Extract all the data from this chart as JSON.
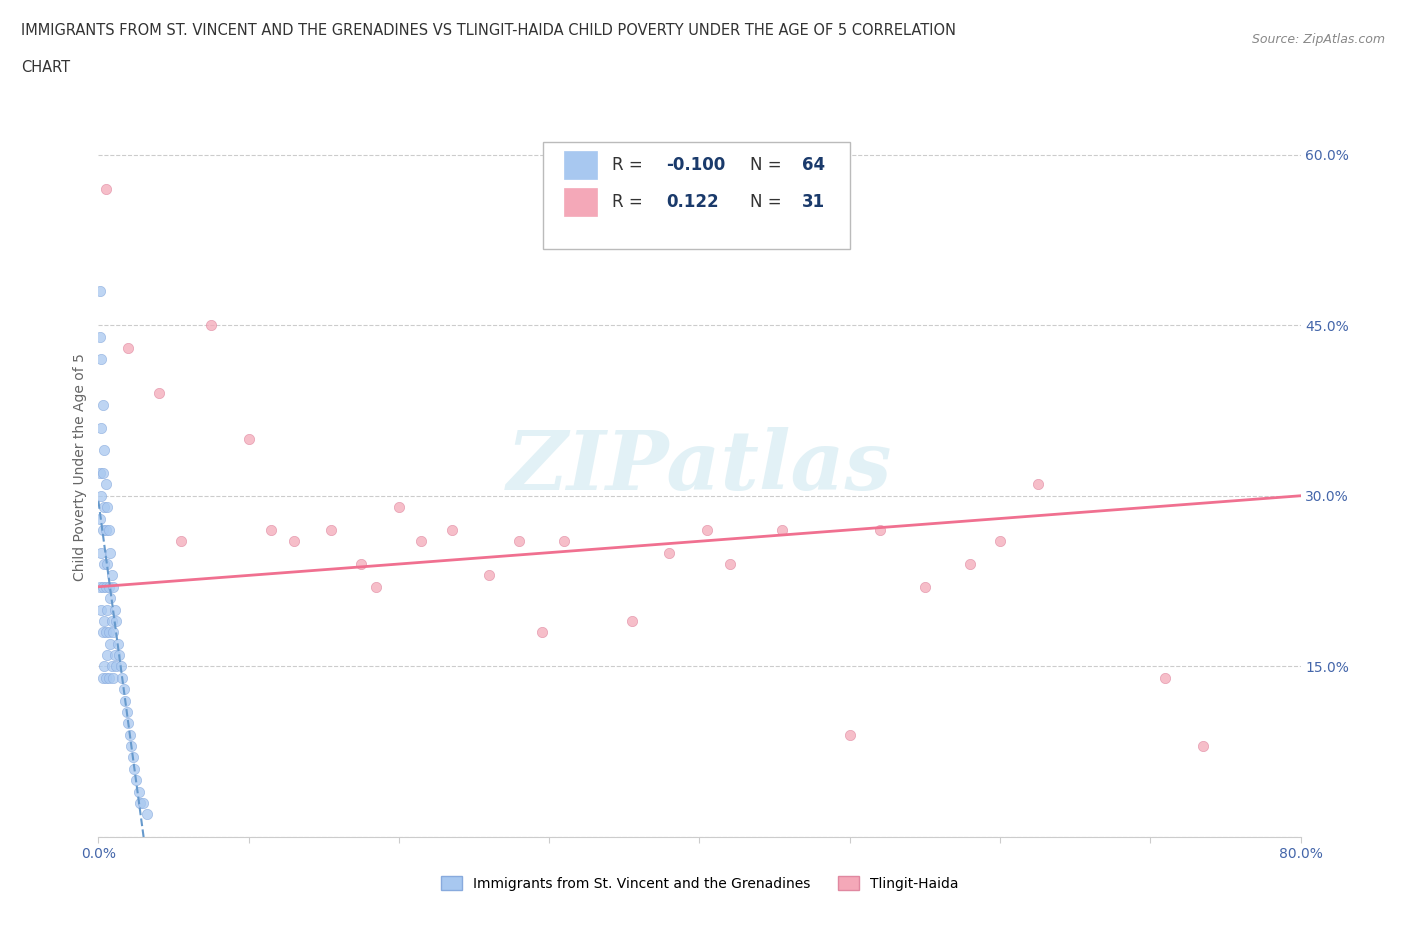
{
  "title_line1": "IMMIGRANTS FROM ST. VINCENT AND THE GRENADINES VS TLINGIT-HAIDA CHILD POVERTY UNDER THE AGE OF 5 CORRELATION",
  "title_line2": "CHART",
  "source_text": "Source: ZipAtlas.com",
  "ylabel": "Child Poverty Under the Age of 5",
  "xmin": 0.0,
  "xmax": 0.8,
  "ymin": 0.0,
  "ymax": 0.65,
  "xticks": [
    0.0,
    0.1,
    0.2,
    0.3,
    0.4,
    0.5,
    0.6,
    0.7,
    0.8
  ],
  "xticklabels": [
    "0.0%",
    "",
    "",
    "",
    "",
    "",
    "",
    "",
    "80.0%"
  ],
  "yticks": [
    0.0,
    0.15,
    0.3,
    0.45,
    0.6
  ],
  "yticklabels": [
    "",
    "15.0%",
    "30.0%",
    "45.0%",
    "60.0%"
  ],
  "grid_color": "#cccccc",
  "watermark_text": "ZIPatlas",
  "blue_scatter_x": [
    0.001,
    0.001,
    0.001,
    0.001,
    0.001,
    0.002,
    0.002,
    0.002,
    0.002,
    0.002,
    0.003,
    0.003,
    0.003,
    0.003,
    0.003,
    0.003,
    0.004,
    0.004,
    0.004,
    0.004,
    0.004,
    0.005,
    0.005,
    0.005,
    0.005,
    0.005,
    0.006,
    0.006,
    0.006,
    0.006,
    0.007,
    0.007,
    0.007,
    0.007,
    0.008,
    0.008,
    0.008,
    0.009,
    0.009,
    0.009,
    0.01,
    0.01,
    0.01,
    0.011,
    0.011,
    0.012,
    0.012,
    0.013,
    0.014,
    0.015,
    0.016,
    0.017,
    0.018,
    0.019,
    0.02,
    0.021,
    0.022,
    0.023,
    0.024,
    0.025,
    0.027,
    0.028,
    0.03,
    0.032
  ],
  "blue_scatter_y": [
    0.48,
    0.44,
    0.32,
    0.28,
    0.22,
    0.42,
    0.36,
    0.3,
    0.25,
    0.2,
    0.38,
    0.32,
    0.27,
    0.22,
    0.18,
    0.14,
    0.34,
    0.29,
    0.24,
    0.19,
    0.15,
    0.31,
    0.27,
    0.22,
    0.18,
    0.14,
    0.29,
    0.24,
    0.2,
    0.16,
    0.27,
    0.22,
    0.18,
    0.14,
    0.25,
    0.21,
    0.17,
    0.23,
    0.19,
    0.15,
    0.22,
    0.18,
    0.14,
    0.2,
    0.16,
    0.19,
    0.15,
    0.17,
    0.16,
    0.15,
    0.14,
    0.13,
    0.12,
    0.11,
    0.1,
    0.09,
    0.08,
    0.07,
    0.06,
    0.05,
    0.04,
    0.03,
    0.03,
    0.02
  ],
  "pink_scatter_x": [
    0.005,
    0.02,
    0.04,
    0.055,
    0.075,
    0.1,
    0.115,
    0.13,
    0.155,
    0.175,
    0.185,
    0.2,
    0.215,
    0.235,
    0.26,
    0.28,
    0.295,
    0.31,
    0.355,
    0.38,
    0.405,
    0.42,
    0.455,
    0.5,
    0.52,
    0.55,
    0.58,
    0.6,
    0.625,
    0.71,
    0.735
  ],
  "pink_scatter_y": [
    0.57,
    0.43,
    0.39,
    0.26,
    0.45,
    0.35,
    0.27,
    0.26,
    0.27,
    0.24,
    0.22,
    0.29,
    0.26,
    0.27,
    0.23,
    0.26,
    0.18,
    0.26,
    0.19,
    0.25,
    0.27,
    0.24,
    0.27,
    0.09,
    0.27,
    0.22,
    0.24,
    0.26,
    0.31,
    0.14,
    0.08
  ],
  "blue_R": -0.1,
  "blue_N": 64,
  "pink_R": 0.122,
  "pink_N": 31,
  "blue_color": "#a8c8f0",
  "pink_color": "#f4a8b8",
  "blue_line_color": "#6699cc",
  "pink_line_color": "#f07090",
  "ytick_label_color": "#4466aa",
  "xtick_label_color": "#4466aa",
  "legend_R_color": "#1a3a6b",
  "background_color": "#ffffff"
}
